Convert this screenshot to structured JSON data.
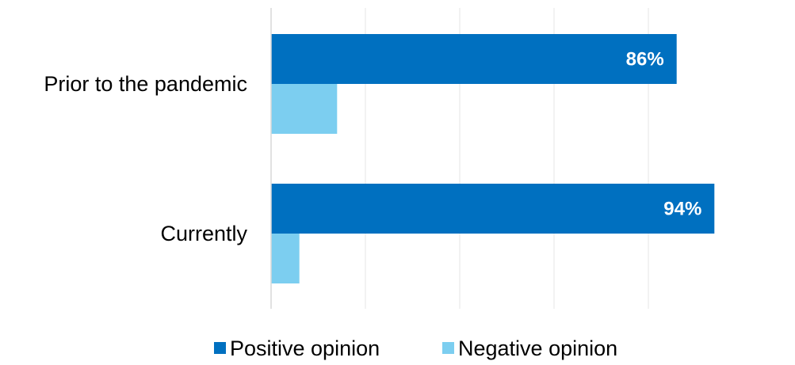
{
  "chart_data": {
    "type": "bar",
    "orientation": "horizontal",
    "categories": [
      "Prior to the pandemic",
      "Currently"
    ],
    "series": [
      {
        "name": "Positive opinion",
        "color": "#0070c0",
        "values": [
          86,
          94
        ],
        "data_labels": [
          "86%",
          "94%"
        ]
      },
      {
        "name": "Negative opinion",
        "color": "#7ccef0",
        "values": [
          14,
          6
        ],
        "data_labels": [
          "",
          ""
        ]
      }
    ],
    "value_unit": "%",
    "xlim": [
      0,
      100
    ],
    "title": "",
    "xlabel": "",
    "ylabel": "",
    "grid": true,
    "legend_position": "bottom"
  }
}
